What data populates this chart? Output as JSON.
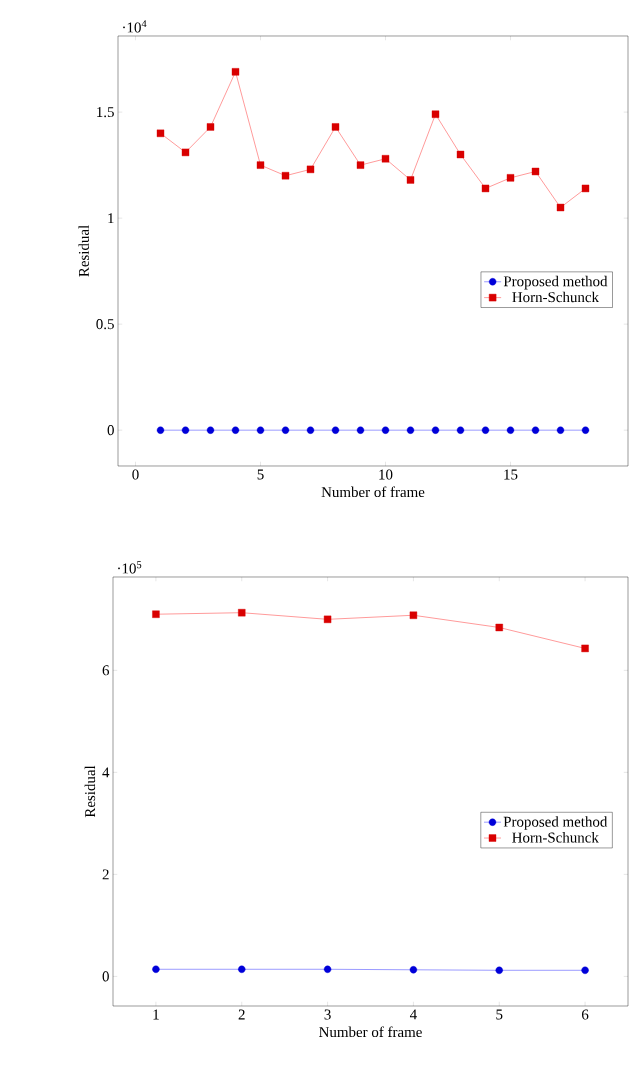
{
  "chart_data": [
    {
      "type": "line",
      "xlabel": "Number of frame",
      "ylabel": "Residual",
      "annotations": [
        "·10$^{4}$"
      ],
      "x": [
        1,
        2,
        3,
        4,
        5,
        6,
        7,
        8,
        9,
        10,
        11,
        12,
        13,
        14,
        15,
        16,
        17,
        18
      ],
      "series": [
        {
          "name": "Proposed method",
          "color": "#0000ff",
          "marker": "circle",
          "values": [
            0,
            0,
            0,
            0,
            0,
            0,
            0,
            0,
            0,
            0,
            0,
            0,
            0,
            0,
            0,
            0,
            0,
            0
          ]
        },
        {
          "name": "Horn-Schunck",
          "color": "#ff0000",
          "marker": "square",
          "values": [
            1.4,
            1.31,
            1.43,
            1.69,
            1.25,
            1.2,
            1.23,
            1.43,
            1.25,
            1.28,
            1.18,
            1.49,
            1.3,
            1.14,
            1.19,
            1.22,
            1.05,
            1.14
          ]
        }
      ],
      "xlim": [
        -0.7,
        19.7
      ],
      "ylim": [
        -0.169,
        1.859
      ],
      "xticks": [
        0,
        5,
        10,
        15
      ],
      "yticks": [
        0,
        0.5,
        1,
        1.5
      ],
      "legend": "right"
    },
    {
      "type": "line",
      "xlabel": "Number of frame",
      "ylabel": "Residual",
      "annotations": [
        "·10$^{5}$"
      ],
      "x": [
        1,
        2,
        3,
        4,
        5,
        6
      ],
      "series": [
        {
          "name": "Proposed method",
          "color": "#0000ff",
          "marker": "circle",
          "values": [
            0.14,
            0.14,
            0.14,
            0.13,
            0.12,
            0.12
          ]
        },
        {
          "name": "Horn-Schunck",
          "color": "#ff0000",
          "marker": "square",
          "values": [
            7.1,
            7.13,
            7.0,
            7.08,
            6.84,
            6.43
          ]
        }
      ],
      "xlim": [
        0.5,
        6.5
      ],
      "ylim": [
        -0.58,
        7.83
      ],
      "xticks": [
        1,
        2,
        3,
        4,
        5,
        6
      ],
      "yticks": [
        0,
        2,
        4,
        6
      ],
      "legend": "right"
    }
  ]
}
